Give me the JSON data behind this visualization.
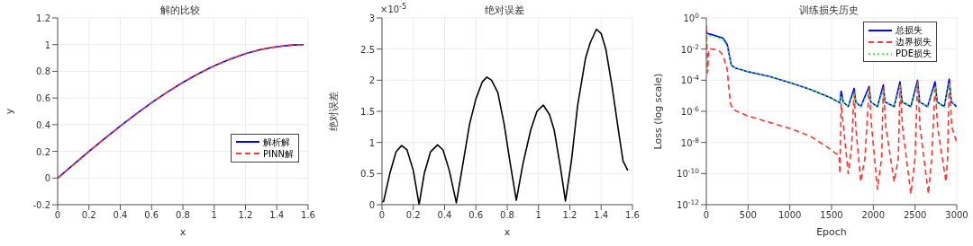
{
  "chart_data": [
    {
      "type": "line",
      "title": "解的比较",
      "xlabel": "x",
      "ylabel": "y",
      "xlim": [
        0,
        1.6
      ],
      "xticks": [
        0,
        0.2,
        0.4,
        0.6,
        0.8,
        1,
        1.2,
        1.4,
        1.6
      ],
      "ylim": [
        -0.2,
        1.2
      ],
      "yticks": [
        -0.2,
        0,
        0.2,
        0.4,
        0.6,
        0.8,
        1,
        1.2
      ],
      "grid": true,
      "legend": "right",
      "x": [
        0,
        0.1,
        0.2,
        0.3,
        0.4,
        0.5,
        0.6,
        0.7,
        0.8,
        0.9,
        1.0,
        1.1,
        1.2,
        1.3,
        1.4,
        1.5,
        1.5708
      ],
      "series": [
        {
          "name": "解析解",
          "color": "#0000ff",
          "line_style": "solid",
          "values": [
            0,
            0.1,
            0.199,
            0.296,
            0.389,
            0.479,
            0.565,
            0.644,
            0.717,
            0.783,
            0.841,
            0.891,
            0.932,
            0.964,
            0.985,
            0.997,
            1.0
          ]
        },
        {
          "name": "PINN解",
          "color": "#ff3333",
          "line_style": "dashed",
          "values": [
            0,
            0.1,
            0.199,
            0.296,
            0.389,
            0.479,
            0.565,
            0.644,
            0.717,
            0.783,
            0.841,
            0.891,
            0.932,
            0.964,
            0.985,
            0.997,
            1.0
          ]
        }
      ]
    },
    {
      "type": "line",
      "title": "绝对误差",
      "xlabel": "x",
      "ylabel": "绝对误差",
      "annotations": [
        "×10$^{-5}$"
      ],
      "xlim": [
        0,
        1.6
      ],
      "xticks": [
        0,
        0.2,
        0.4,
        0.6,
        0.8,
        1,
        1.2,
        1.4,
        1.6
      ],
      "ylim": [
        0,
        3
      ],
      "yticks": [
        0,
        0.5,
        1,
        1.5,
        2,
        2.5,
        3
      ],
      "grid": true,
      "x": [
        0,
        0.01,
        0.05,
        0.09,
        0.125,
        0.16,
        0.2,
        0.237,
        0.27,
        0.31,
        0.355,
        0.39,
        0.43,
        0.475,
        0.52,
        0.56,
        0.6,
        0.64,
        0.67,
        0.7,
        0.74,
        0.78,
        0.82,
        0.858,
        0.9,
        0.95,
        0.99,
        1.03,
        1.07,
        1.1,
        1.14,
        1.172,
        1.21,
        1.25,
        1.3,
        1.33,
        1.37,
        1.4,
        1.43,
        1.47,
        1.51,
        1.54,
        1.57
      ],
      "series": [
        {
          "color": "#000000",
          "values": [
            0.05,
            0.05,
            0.5,
            0.85,
            0.95,
            0.88,
            0.55,
            0.0,
            0.5,
            0.85,
            0.96,
            0.88,
            0.55,
            0.03,
            0.7,
            1.3,
            1.7,
            1.97,
            2.05,
            2.0,
            1.8,
            1.3,
            0.65,
            0.07,
            0.65,
            1.2,
            1.5,
            1.6,
            1.45,
            1.2,
            0.6,
            0.06,
            0.7,
            1.6,
            2.35,
            2.6,
            2.82,
            2.75,
            2.5,
            1.9,
            1.2,
            0.7,
            0.55
          ]
        }
      ]
    },
    {
      "type": "line",
      "title": "训练损失历史",
      "xlabel": "Epoch",
      "ylabel": "Loss (log scale)",
      "log": "y",
      "xlim": [
        0,
        3000
      ],
      "xticks": [
        0,
        500,
        1000,
        1500,
        2000,
        2500,
        3000
      ],
      "ylim": [
        1e-12,
        1
      ],
      "yticks": [
        {
          "value": 1e-12,
          "label": "10$^{-12}$"
        },
        {
          "value": 1e-10,
          "label": "10$^{-10}$"
        },
        {
          "value": 1e-08,
          "label": "10$^{-8}$"
        },
        {
          "value": 1e-06,
          "label": "10$^{-6}$"
        },
        {
          "value": 0.0001,
          "label": "10$^{-4}$"
        },
        {
          "value": 0.01,
          "label": "10$^{-2}$"
        },
        {
          "value": 1,
          "label": "10$^{0}$"
        }
      ],
      "grid": true,
      "legend": "top right",
      "series": [
        {
          "name": "总损失",
          "color": "#0000ff",
          "line_style": "solid",
          "x": [
            0,
            10,
            50,
            100,
            200,
            250,
            280,
            300,
            350,
            500,
            750,
            1000,
            1250,
            1500,
            1600,
            1615,
            1640,
            1700,
            1770,
            1790,
            1850,
            1950,
            1970,
            2050,
            2120,
            2140,
            2250,
            2320,
            2345,
            2450,
            2530,
            2555,
            2650,
            2740,
            2765,
            2850,
            2910,
            2935,
            3000
          ],
          "values": [
            0.15,
            0.1,
            0.09,
            0.075,
            0.05,
            0.02,
            0.003,
            0.0009,
            0.0006,
            0.00035,
            0.00018,
            7e-05,
            2.5e-05,
            7e-06,
            3.5e-06,
            2e-05,
            4e-06,
            2e-06,
            3e-05,
            4e-06,
            2e-06,
            4e-05,
            4e-06,
            2e-06,
            5e-05,
            4e-06,
            2e-06,
            8e-05,
            4e-06,
            2e-06,
            0.0001,
            4e-06,
            2e-06,
            8e-05,
            4e-06,
            2e-06,
            0.00012,
            4e-06,
            2e-06
          ]
        },
        {
          "name": "边界损失",
          "color": "#ff3333",
          "line_style": "dashed",
          "x": [
            0,
            5,
            15,
            30,
            80,
            150,
            200,
            250,
            270,
            290,
            320,
            500,
            750,
            1000,
            1250,
            1450,
            1550,
            1590,
            1600,
            1615,
            1700,
            1740,
            1770,
            1790,
            1850,
            1900,
            1950,
            1980,
            2050,
            2100,
            2120,
            2150,
            2250,
            2300,
            2320,
            2350,
            2450,
            2500,
            2530,
            2560,
            2660,
            2700,
            2740,
            2770,
            2870,
            2890,
            2910,
            2940,
            3000
          ],
          "values": [
            0.3,
            0.05,
            0.0003,
            0.01,
            0.01,
            0.008,
            0.004,
            0.0005,
            3e-05,
            3e-06,
            1.3e-06,
            5e-07,
            2e-07,
            8e-08,
            2.5e-08,
            5e-09,
            2e-09,
            1.5e-09,
            1e-10,
            3e-06,
            1e-10,
            5e-09,
            2e-05,
            1e-07,
            3e-11,
            1e-09,
            3e-05,
            1e-07,
            1e-11,
            1e-09,
            4e-05,
            1e-07,
            3e-11,
            1e-09,
            5e-05,
            1e-07,
            5e-12,
            1e-09,
            8e-05,
            1e-07,
            5e-12,
            1e-09,
            5e-05,
            1e-07,
            3e-11,
            1e-09,
            8e-05,
            1e-07,
            1e-08
          ]
        },
        {
          "name": "PDE损失",
          "color": "#33ff33",
          "line_style": "dotted",
          "x": [
            0,
            10,
            50,
            100,
            200,
            250,
            280,
            300,
            350,
            500,
            750,
            1000,
            1250,
            1500,
            1600,
            1615,
            1640,
            1700,
            1770,
            1790,
            1850,
            1950,
            1970,
            2050,
            2120,
            2140,
            2250,
            2320,
            2345,
            2450,
            2530,
            2555,
            2650,
            2740,
            2765,
            2850,
            2910,
            2935,
            3000
          ],
          "values": [
            0.03,
            0.08,
            0.07,
            0.06,
            0.04,
            0.015,
            0.0025,
            0.0008,
            0.0006,
            0.00035,
            0.00018,
            7e-05,
            2.5e-05,
            7e-06,
            3.5e-06,
            1e-05,
            4e-06,
            2e-06,
            1.5e-05,
            4e-06,
            2e-06,
            2e-05,
            4e-06,
            2e-06,
            2.5e-05,
            4e-06,
            2e-06,
            4e-05,
            4e-06,
            2e-06,
            5e-05,
            4e-06,
            2e-06,
            4e-05,
            4e-06,
            2e-06,
            6e-05,
            4e-06,
            2e-06
          ]
        }
      ]
    }
  ]
}
